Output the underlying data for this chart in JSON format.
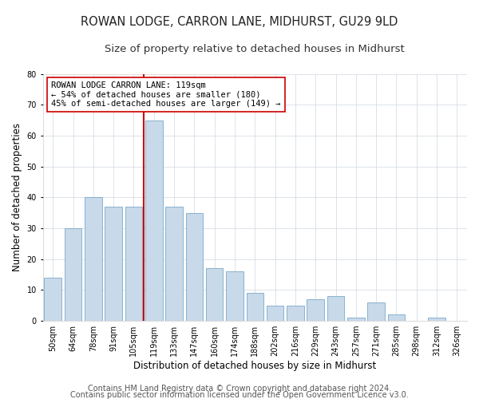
{
  "title": "ROWAN LODGE, CARRON LANE, MIDHURST, GU29 9LD",
  "subtitle": "Size of property relative to detached houses in Midhurst",
  "xlabel": "Distribution of detached houses by size in Midhurst",
  "ylabel": "Number of detached properties",
  "categories": [
    "50sqm",
    "64sqm",
    "78sqm",
    "91sqm",
    "105sqm",
    "119sqm",
    "133sqm",
    "147sqm",
    "160sqm",
    "174sqm",
    "188sqm",
    "202sqm",
    "216sqm",
    "229sqm",
    "243sqm",
    "257sqm",
    "271sqm",
    "285sqm",
    "298sqm",
    "312sqm",
    "326sqm"
  ],
  "values": [
    14,
    30,
    40,
    37,
    37,
    65,
    37,
    35,
    17,
    16,
    9,
    5,
    5,
    7,
    8,
    1,
    6,
    2,
    0,
    1,
    0
  ],
  "bar_color": "#c8d9ea",
  "bar_edge_color": "#7aaac8",
  "highlight_index": 5,
  "highlight_line_color": "#cc0000",
  "ylim": [
    0,
    80
  ],
  "yticks": [
    0,
    10,
    20,
    30,
    40,
    50,
    60,
    70,
    80
  ],
  "annotation_text": "ROWAN LODGE CARRON LANE: 119sqm\n← 54% of detached houses are smaller (180)\n45% of semi-detached houses are larger (149) →",
  "annotation_box_color": "#ffffff",
  "annotation_box_edge": "#cc0000",
  "footer1": "Contains HM Land Registry data © Crown copyright and database right 2024.",
  "footer2": "Contains public sector information licensed under the Open Government Licence v3.0.",
  "background_color": "#ffffff",
  "plot_background": "#ffffff",
  "grid_color": "#d0d8e0",
  "title_fontsize": 10.5,
  "subtitle_fontsize": 9.5,
  "xlabel_fontsize": 8.5,
  "ylabel_fontsize": 8.5,
  "tick_fontsize": 7,
  "annotation_fontsize": 7.5,
  "footer_fontsize": 7
}
